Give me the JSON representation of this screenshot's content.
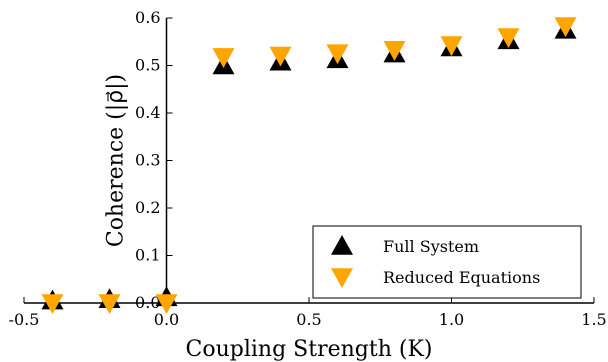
{
  "chart_data": {
    "type": "scatter",
    "xlabel": "Coupling Strength (K)",
    "ylabel": "Coherence (|ρ⃗|)",
    "xlim": [
      -0.5,
      1.5
    ],
    "ylim": [
      0.0,
      0.6
    ],
    "xticks": [
      "-0.5",
      "0.0",
      "0.5",
      "1.0",
      "1.5"
    ],
    "yticks": [
      "0.0",
      "0.1",
      "0.2",
      "0.3",
      "0.4",
      "0.5",
      "0.6"
    ],
    "grid": false,
    "legend_position": "bottom-right",
    "series": [
      {
        "name": "Full System",
        "marker": "triangle-up",
        "color": "#000000",
        "x": [
          -0.4,
          -0.2,
          0.0,
          0.2,
          0.4,
          0.6,
          0.8,
          1.0,
          1.2,
          1.4
        ],
        "y": [
          0.005,
          0.008,
          0.012,
          0.5,
          0.508,
          0.513,
          0.525,
          0.538,
          0.553,
          0.575
        ]
      },
      {
        "name": "Reduced Equations",
        "marker": "triangle-down",
        "color": "#FFA500",
        "x": [
          -0.4,
          -0.2,
          0.0,
          0.2,
          0.4,
          0.6,
          0.8,
          1.0,
          1.2,
          1.4
        ],
        "y": [
          0.0,
          0.0,
          0.0,
          0.518,
          0.521,
          0.526,
          0.533,
          0.543,
          0.56,
          0.583
        ]
      }
    ]
  }
}
